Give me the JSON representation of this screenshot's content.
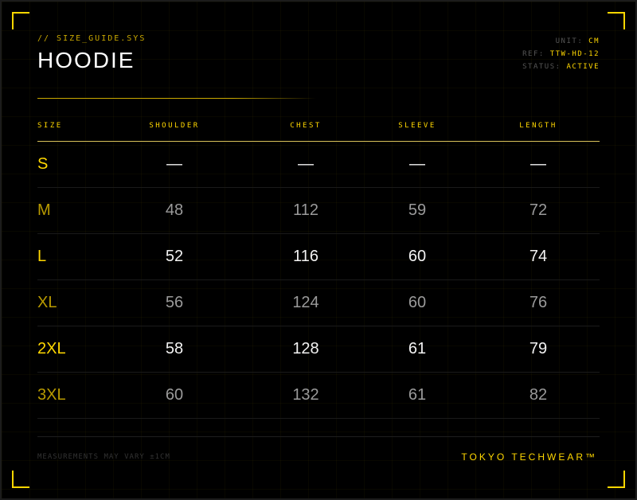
{
  "header": {
    "system_label": "// SIZE_GUIDE.SYS",
    "title": "HOODIE"
  },
  "meta": [
    {
      "key": "UNIT:",
      "value": "CM"
    },
    {
      "key": "REF:",
      "value": "TTW-HD-12"
    },
    {
      "key": "STATUS:",
      "value": "ACTIVE"
    }
  ],
  "table": {
    "columns": [
      "SIZE",
      "SHOULDER",
      "CHEST",
      "SLEEVE",
      "LENGTH"
    ],
    "rows": [
      [
        "S",
        "—",
        "—",
        "—",
        "—"
      ],
      [
        "M",
        "48",
        "112",
        "59",
        "72"
      ],
      [
        "L",
        "52",
        "116",
        "60",
        "74"
      ],
      [
        "XL",
        "56",
        "124",
        "60",
        "76"
      ],
      [
        "2XL",
        "58",
        "128",
        "61",
        "79"
      ],
      [
        "3XL",
        "60",
        "132",
        "61",
        "82"
      ]
    ]
  },
  "footer": {
    "note": "MEASUREMENTS MAY VARY ±1CM",
    "brand": "TOKYO TECHWEAR™"
  },
  "colors": {
    "accent": "#FFD700",
    "accent_dim": "#B89A00",
    "background": "#000000"
  }
}
